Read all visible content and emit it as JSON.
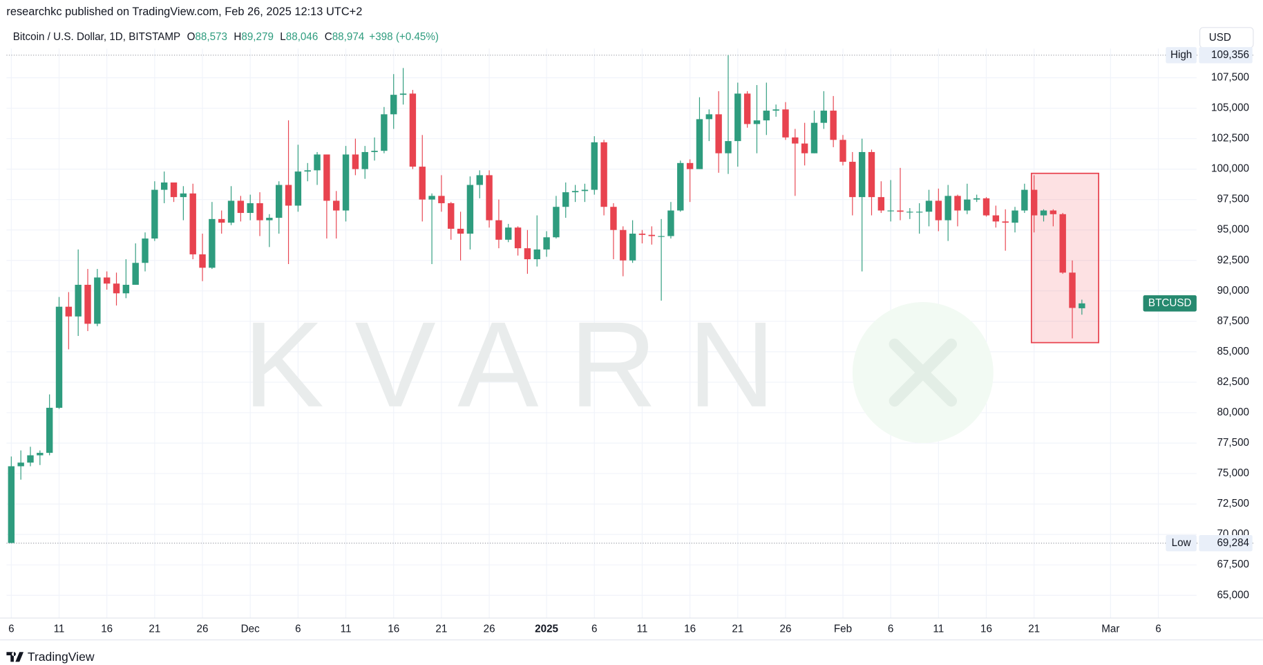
{
  "header": {
    "publisher": "researchkc published on TradingView.com, Feb 26, 2025 12:13 UTC+2",
    "symbol": "Bitcoin / U.S. Dollar, 1D, BITSTAMP",
    "o_key": "O",
    "o": "88,573",
    "h_key": "H",
    "h": "89,279",
    "l_key": "L",
    "l": "88,046",
    "c_key": "C",
    "c": "88,974",
    "change": "+398 (+0.45%)",
    "currency": "USD"
  },
  "watermark": "KVARN",
  "footer": "TradingView",
  "chart_data": {
    "type": "candlestick",
    "up_color": "#2e9c7e",
    "down_color": "#e8434f",
    "grid": true,
    "xlim": [
      -0.5,
      124
    ],
    "ylim": [
      63138,
      109894
    ],
    "xticks": [
      {
        "value": 0,
        "label": "6"
      },
      {
        "value": 5,
        "label": "11"
      },
      {
        "value": 10,
        "label": "16"
      },
      {
        "value": 15,
        "label": "21"
      },
      {
        "value": 20,
        "label": "26"
      },
      {
        "value": 25,
        "label": "Dec"
      },
      {
        "value": 30,
        "label": "6"
      },
      {
        "value": 35,
        "label": "11"
      },
      {
        "value": 40,
        "label": "16"
      },
      {
        "value": 45,
        "label": "21"
      },
      {
        "value": 50,
        "label": "26"
      },
      {
        "value": 56,
        "label": "2025"
      },
      {
        "value": 61,
        "label": "6"
      },
      {
        "value": 66,
        "label": "11"
      },
      {
        "value": 71,
        "label": "16"
      },
      {
        "value": 76,
        "label": "21"
      },
      {
        "value": 81,
        "label": "26"
      },
      {
        "value": 87,
        "label": "Feb"
      },
      {
        "value": 92,
        "label": "6"
      },
      {
        "value": 97,
        "label": "11"
      },
      {
        "value": 102,
        "label": "16"
      },
      {
        "value": 107,
        "label": "21"
      },
      {
        "value": 115,
        "label": "Mar"
      },
      {
        "value": 120,
        "label": "6"
      }
    ],
    "yticks": [
      {
        "value": 65000,
        "label": "65,000"
      },
      {
        "value": 67500,
        "label": "67,500"
      },
      {
        "value": 70000,
        "label": "70,000"
      },
      {
        "value": 72500,
        "label": "72,500"
      },
      {
        "value": 75000,
        "label": "75,000"
      },
      {
        "value": 77500,
        "label": "77,500"
      },
      {
        "value": 80000,
        "label": "80,000"
      },
      {
        "value": 82500,
        "label": "82,500"
      },
      {
        "value": 85000,
        "label": "85,000"
      },
      {
        "value": 87500,
        "label": "87,500"
      },
      {
        "value": 90000,
        "label": "90,000"
      },
      {
        "value": 92500,
        "label": "92,500"
      },
      {
        "value": 95000,
        "label": "95,000"
      },
      {
        "value": 97500,
        "label": "97,500"
      },
      {
        "value": 100000,
        "label": "100,000"
      },
      {
        "value": 102500,
        "label": "102,500"
      },
      {
        "value": 105000,
        "label": "105,000"
      },
      {
        "value": 107500,
        "label": "107,500"
      }
    ],
    "high_line": {
      "label": "High",
      "value": 109356,
      "value_label": "109,356"
    },
    "low_line": {
      "label": "Low",
      "value": 69284,
      "value_label": "69,284"
    },
    "price_label": {
      "label": "BTCUSD",
      "value": 88974
    },
    "open": [
      69300,
      75600,
      75900,
      76500,
      76700,
      80400,
      88700,
      87900,
      90500,
      87300,
      91100,
      90600,
      89800,
      90500,
      92300,
      94300,
      98300,
      98900,
      97700,
      98000,
      93000,
      91900,
      95900,
      95600,
      97400,
      96400,
      97200,
      95800,
      96000,
      98700,
      97000,
      99800,
      99900,
      101200,
      97400,
      96600,
      101200,
      100000,
      101400,
      101500,
      104500,
      106100,
      106200,
      100200,
      97500,
      97800,
      97200,
      95100,
      94700,
      98700,
      99500,
      95800,
      94200,
      95200,
      93500,
      92600,
      93400,
      94400,
      96900,
      98100,
      98200,
      98300,
      102200,
      96900,
      95000,
      92500,
      94700,
      94600,
      94500,
      94500,
      96600,
      100500,
      100000,
      104100,
      104500,
      101300,
      102300,
      106200,
      103700,
      104000,
      104800,
      104900,
      102600,
      102100,
      101300,
      103800,
      104800,
      102400,
      100600,
      97700,
      101400,
      97700,
      96600,
      96600,
      96500,
      96500,
      96500,
      97400,
      95800,
      97800,
      96600,
      97500,
      97600,
      96200,
      95700,
      95600,
      96600,
      98300,
      96200,
      96600,
      96300,
      91500,
      88573
    ],
    "high": [
      76400,
      76900,
      77200,
      76900,
      81500,
      89500,
      89900,
      93400,
      91800,
      91800,
      91600,
      91500,
      92600,
      93900,
      94800,
      99000,
      99800,
      98900,
      98600,
      98800,
      94700,
      97300,
      96600,
      98600,
      97800,
      97900,
      98100,
      96300,
      99000,
      104000,
      102000,
      100500,
      101400,
      101200,
      98200,
      101900,
      102500,
      101900,
      102600,
      105100,
      107800,
      108300,
      106500,
      102800,
      98000,
      99500,
      97300,
      96500,
      99400,
      99900,
      99900,
      97500,
      95500,
      95300,
      95000,
      96200,
      94900,
      97800,
      98900,
      98700,
      98800,
      102700,
      102400,
      97200,
      95300,
      95800,
      95000,
      95300,
      95900,
      97300,
      100700,
      100800,
      105900,
      104900,
      106400,
      109356,
      107100,
      106400,
      106900,
      107100,
      105300,
      105500,
      103300,
      103800,
      104800,
      106400,
      106000,
      102800,
      101400,
      102500,
      101600,
      99000,
      99100,
      100100,
      96800,
      97200,
      98300,
      98400,
      98700,
      97900,
      98800,
      97900,
      97700,
      97000,
      96700,
      96900,
      98800,
      99500,
      96700,
      96700,
      96400,
      92500,
      89279
    ],
    "low": [
      69284,
      74500,
      75600,
      75700,
      76500,
      80300,
      85200,
      86300,
      86700,
      87100,
      90100,
      88800,
      89400,
      90500,
      91600,
      94100,
      97200,
      97300,
      95800,
      92600,
      90800,
      91800,
      94700,
      95400,
      95700,
      95800,
      94500,
      93600,
      94700,
      92200,
      96500,
      99000,
      98700,
      94300,
      94300,
      95700,
      99500,
      99200,
      100700,
      101300,
      103300,
      105300,
      100000,
      95700,
      92200,
      96500,
      94200,
      92500,
      93400,
      97600,
      95200,
      93500,
      94000,
      92900,
      91400,
      92000,
      92800,
      94300,
      96000,
      97300,
      97300,
      97900,
      96200,
      92600,
      91200,
      92300,
      93900,
      93800,
      89200,
      94300,
      96500,
      97300,
      100000,
      102300,
      99700,
      99600,
      100200,
      103400,
      101300,
      102800,
      104300,
      102400,
      97800,
      100300,
      101300,
      103300,
      101800,
      100300,
      96200,
      91600,
      96200,
      96400,
      95700,
      95800,
      95900,
      94700,
      95300,
      94900,
      94100,
      95300,
      96300,
      97300,
      96100,
      95200,
      93300,
      94800,
      96400,
      94800,
      95700,
      95300,
      91400,
      86100,
      88046
    ],
    "close": [
      75600,
      75900,
      76500,
      76700,
      80400,
      88700,
      87900,
      90500,
      87300,
      91100,
      90600,
      89800,
      90500,
      92300,
      94300,
      98300,
      98900,
      97700,
      98000,
      93000,
      91900,
      95900,
      95600,
      97400,
      96400,
      97200,
      95800,
      96000,
      98700,
      97000,
      99800,
      99900,
      101200,
      97400,
      96600,
      101200,
      100000,
      101400,
      101500,
      104500,
      106100,
      106200,
      100200,
      97500,
      97800,
      97200,
      95100,
      94700,
      98700,
      99500,
      95800,
      94200,
      95200,
      93500,
      92600,
      93400,
      94400,
      96900,
      98100,
      98200,
      98300,
      102200,
      96900,
      95000,
      92500,
      94700,
      94600,
      94500,
      94500,
      96600,
      100500,
      100000,
      104100,
      104500,
      101300,
      102300,
      106200,
      103700,
      104000,
      104800,
      104900,
      102600,
      102100,
      101300,
      103800,
      104800,
      102400,
      100600,
      97700,
      101400,
      97700,
      96600,
      96600,
      96500,
      96500,
      96500,
      97400,
      95800,
      97800,
      96600,
      97500,
      97600,
      96200,
      95700,
      95600,
      96600,
      98300,
      96200,
      96600,
      96300,
      91500,
      88600,
      88974
    ]
  }
}
